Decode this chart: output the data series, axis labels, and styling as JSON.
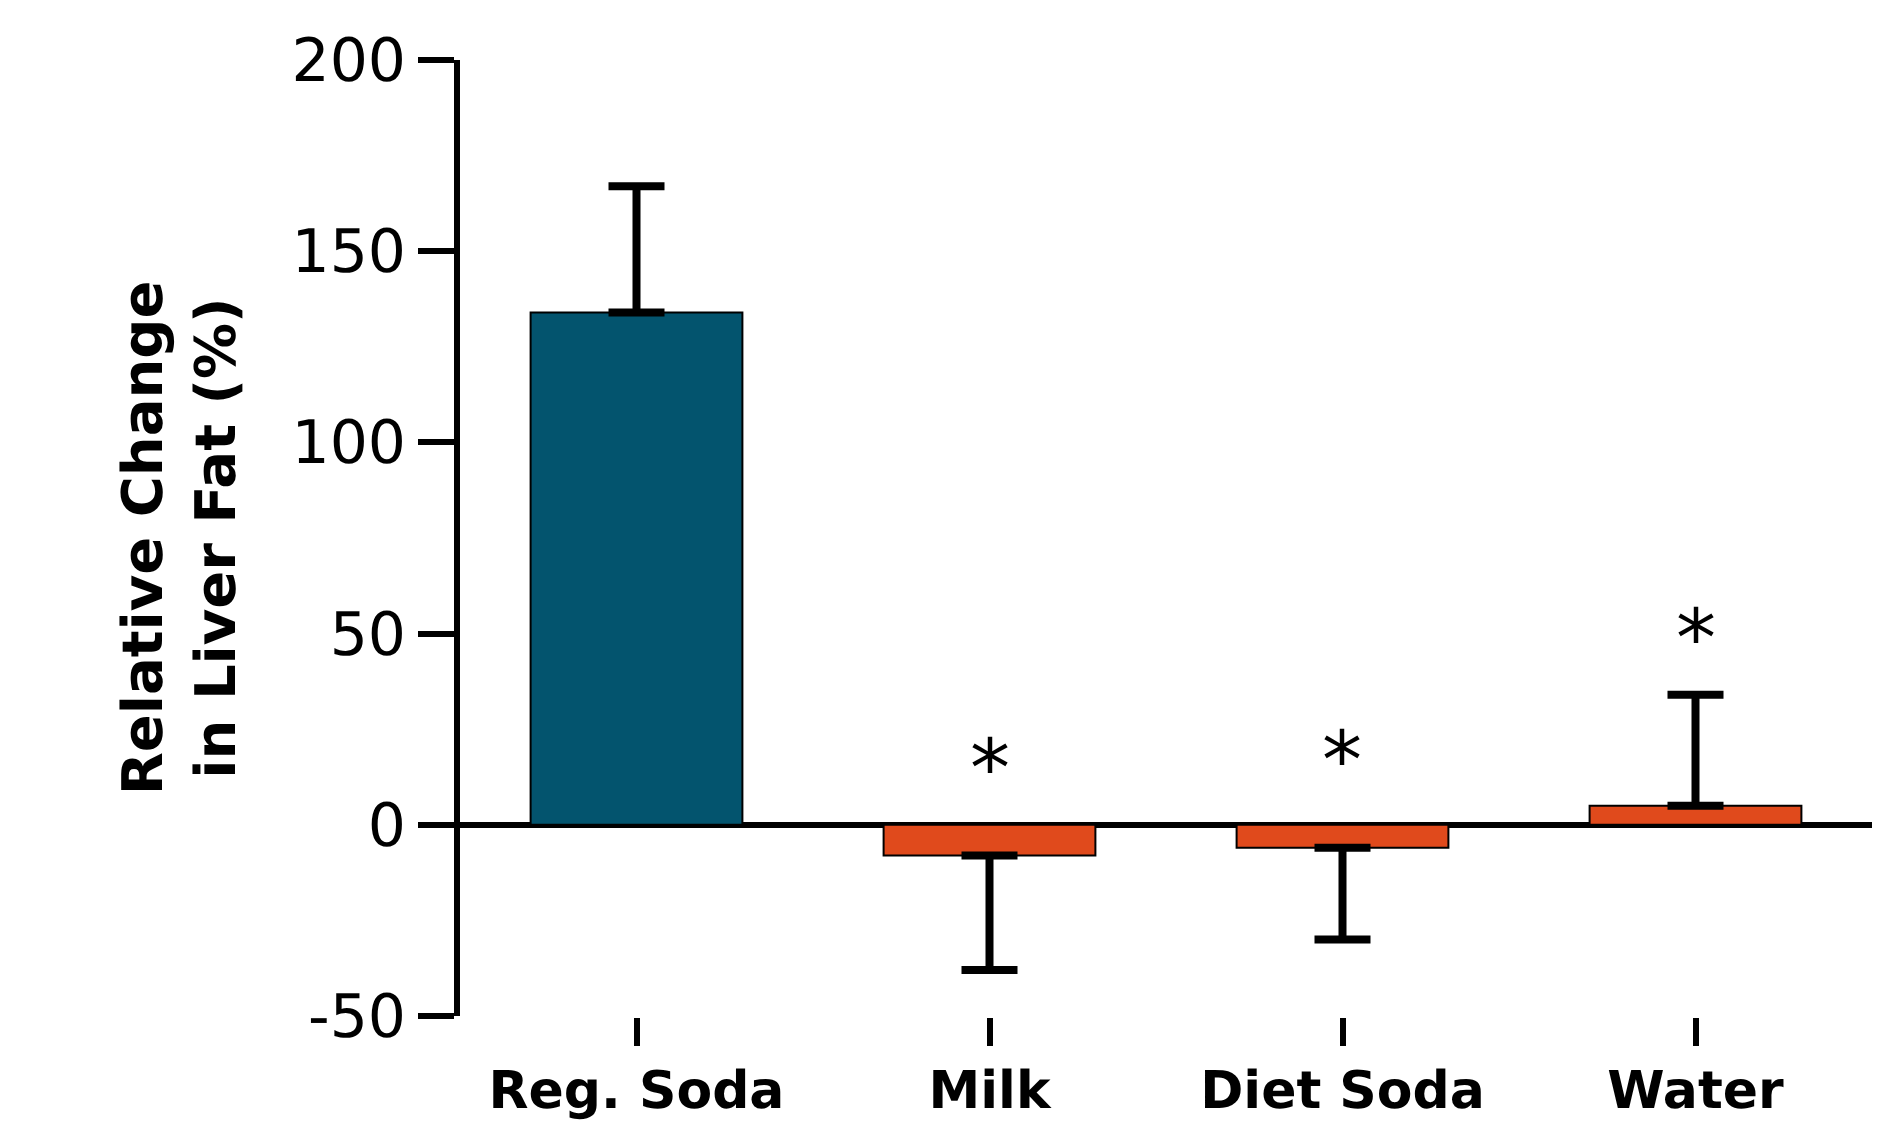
{
  "chart_data": {
    "type": "bar",
    "ylabel": "Relative Change\nin Liver Fat (%)",
    "categories": [
      "Reg. Soda",
      "Milk",
      "Diet Soda",
      "Water"
    ],
    "values": [
      134,
      -8,
      -6,
      5
    ],
    "colors": [
      "#03546e",
      "#e04a1c",
      "#e04a1c",
      "#e04a1c"
    ],
    "errors": [
      [
        134,
        167
      ],
      [
        -38,
        -8
      ],
      [
        -30,
        -6
      ],
      [
        5,
        34
      ]
    ],
    "ylim": [
      -50,
      200
    ],
    "yticks": [
      -50,
      0,
      50,
      100,
      150,
      200
    ],
    "annotations": [
      {
        "text": "*",
        "x": "Milk",
        "y": -8
      },
      {
        "text": "*",
        "x": "Diet Soda",
        "y": -6
      },
      {
        "text": "*",
        "x": "Water",
        "y": 34
      }
    ]
  }
}
